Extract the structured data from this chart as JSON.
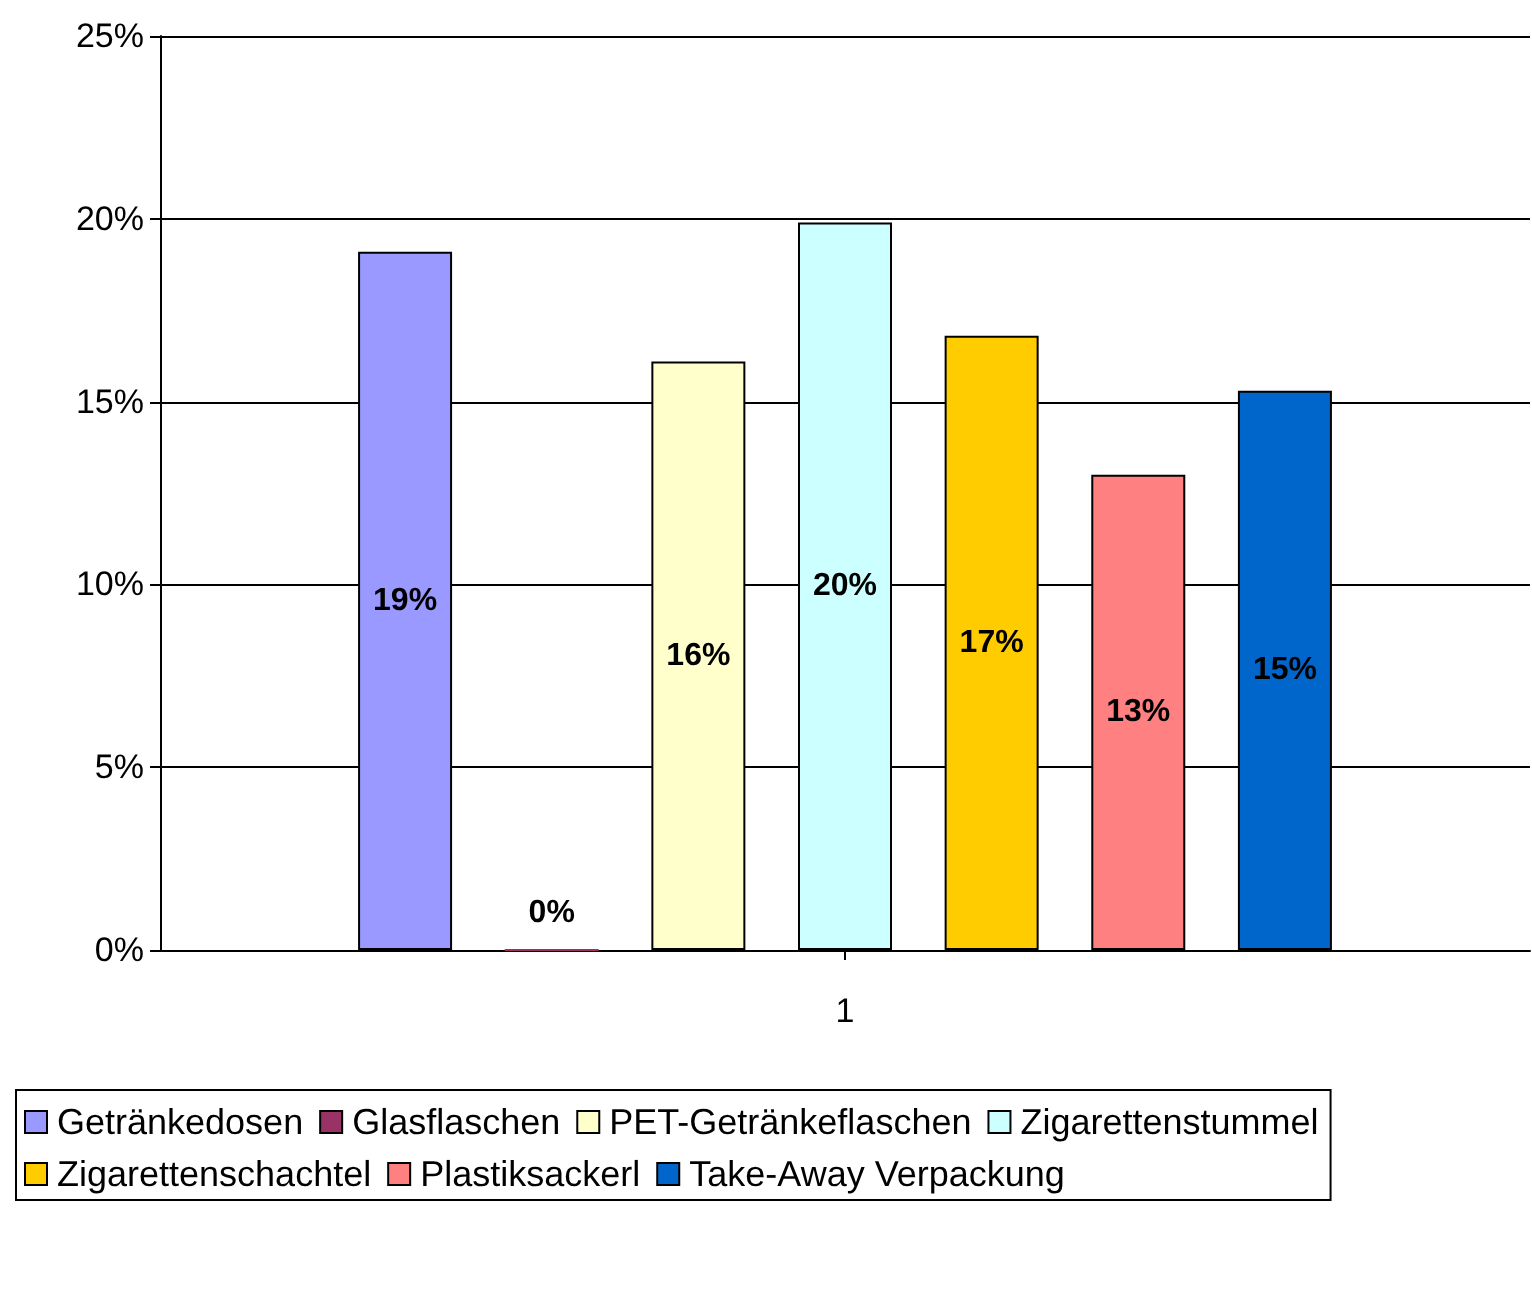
{
  "chart_data": {
    "type": "bar",
    "categories": [
      "1"
    ],
    "series": [
      {
        "name": "Getränkedosen",
        "color": "#9999ff",
        "values": [
          19.1
        ],
        "value_labels": [
          "19%"
        ]
      },
      {
        "name": "Glasflaschen",
        "color": "#993366",
        "values": [
          0
        ],
        "value_labels": [
          "0%"
        ]
      },
      {
        "name": "PET-Getränkeflaschen",
        "color": "#ffffcc",
        "values": [
          16.1
        ],
        "value_labels": [
          "16%"
        ]
      },
      {
        "name": "Zigarettenstummel",
        "color": "#ccffff",
        "values": [
          19.9
        ],
        "value_labels": [
          "20%"
        ]
      },
      {
        "name": "Zigarettenschachtel",
        "color": "#ffcc00",
        "values": [
          16.8
        ],
        "value_labels": [
          "17%"
        ]
      },
      {
        "name": "Plastiksackerl",
        "color": "#ff8080",
        "values": [
          13.0
        ],
        "value_labels": [
          "13%"
        ]
      },
      {
        "name": "Take-Away Verpackung",
        "color": "#0066cc",
        "values": [
          15.3
        ],
        "value_labels": [
          "15%"
        ]
      }
    ],
    "ylim": [
      0,
      25
    ],
    "yticks": [
      {
        "value": 0,
        "label": "0%"
      },
      {
        "value": 5,
        "label": "5%"
      },
      {
        "value": 10,
        "label": "10%"
      },
      {
        "value": 15,
        "label": "15%"
      },
      {
        "value": 20,
        "label": "20%"
      },
      {
        "value": 25,
        "label": "25%"
      }
    ],
    "grid": "y",
    "legend": "bottom"
  }
}
